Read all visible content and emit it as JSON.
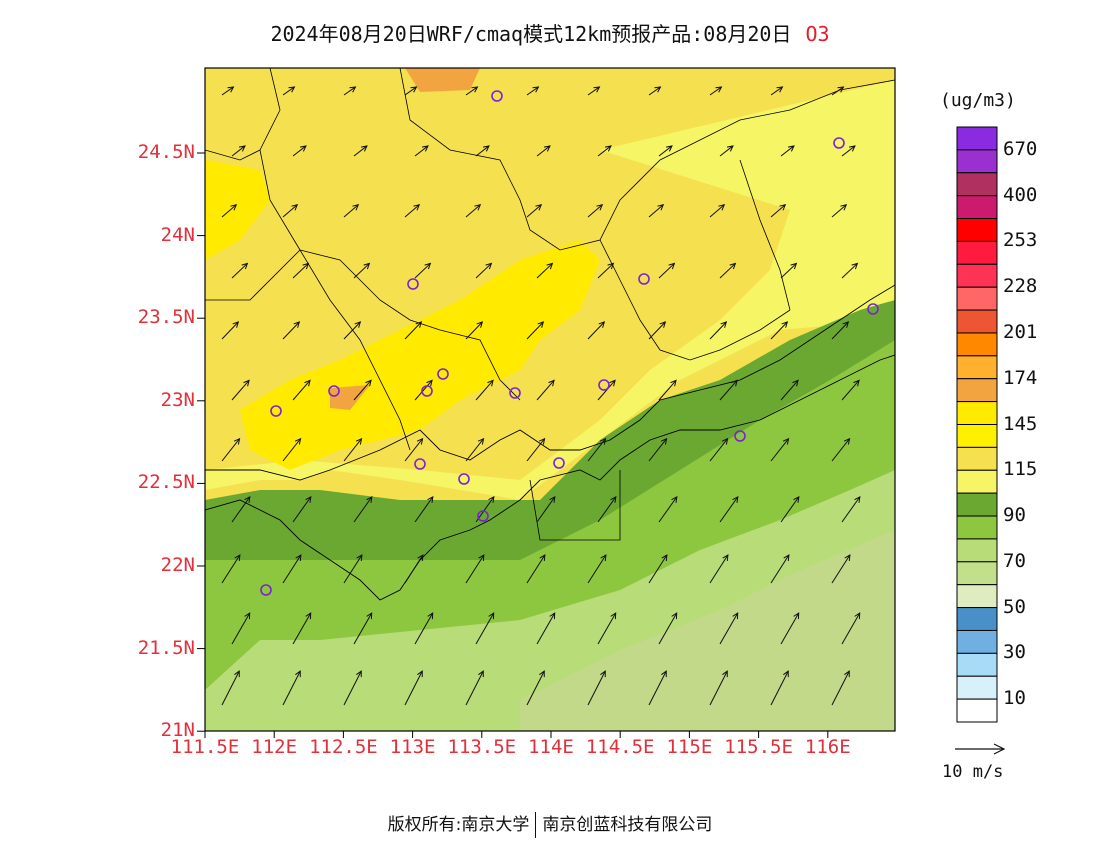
{
  "title": {
    "main": "2024年08月20日WRF/cmaq模式12km预报产品:08月20日",
    "species": "O3"
  },
  "axes": {
    "y_ticks": [
      "24.5N",
      "24N",
      "23.5N",
      "23N",
      "22.5N",
      "22N",
      "21.5N",
      "21N"
    ],
    "x_ticks": [
      "111.5E",
      "112E",
      "112.5E",
      "113E",
      "113.5E",
      "114E",
      "114.5E",
      "115E",
      "115.5E",
      "116E"
    ]
  },
  "colorbar": {
    "unit": "(ug/m3)",
    "labels": [
      "670",
      "400",
      "253",
      "228",
      "201",
      "174",
      "145",
      "115",
      "90",
      "70",
      "50",
      "30",
      "10"
    ],
    "colors": [
      "#8a2be2",
      "#9b30d0",
      "#b03060",
      "#cc1a6e",
      "#ff0000",
      "#ff1a40",
      "#ff3355",
      "#ff6666",
      "#ee5533",
      "#ff8800",
      "#ffb02e",
      "#f2a440",
      "#ffea00",
      "#fff000",
      "#f5e050",
      "#f5f566",
      "#6aa832",
      "#8dc63f",
      "#b8dc78",
      "#c2e08a",
      "#dfecc0",
      "#4a90c8",
      "#70b0e0",
      "#a8dcf6",
      "#d8f0fa",
      "#ffffff"
    ]
  },
  "wind_legend": "10 m/s",
  "copyright": {
    "left": "版权所有:南京大学",
    "right": "南京创蓝科技有限公司"
  },
  "map_fill_colors": {
    "high": "#f2a440",
    "yellow": "#ffea00",
    "mid": "#f5e050",
    "light": "#f5f566",
    "dark_green": "#6aa832",
    "green": "#8dc63f",
    "pale_green": "#b8dc78",
    "sea_pale": "#c2d98a"
  },
  "station_color": "#7a22d6",
  "tick_color": "#e0303a"
}
